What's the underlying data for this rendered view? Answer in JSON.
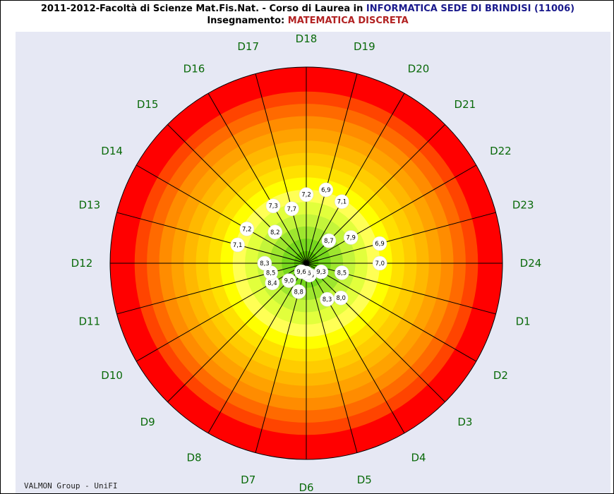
{
  "chart_data": {
    "type": "polar",
    "title_line1": [
      "2011-2012-Facoltà di Scienze Mat.Fis.Nat. - Corso di Laurea in ",
      "INFORMATICA SEDE DI BRINDISI (11006)"
    ],
    "title_line2": [
      "Insegnamento: ",
      "MATEMATICA DISCRETA"
    ],
    "footer": "VALMON Group - UniFI",
    "categories": [
      "D1",
      "D2",
      "D3",
      "D4",
      "D5",
      "D6",
      "D7",
      "D8",
      "D9",
      "D10",
      "D11",
      "D12",
      "D13",
      "D14",
      "D15",
      "D16",
      "D17",
      "D18",
      "D19",
      "D20",
      "D21",
      "D22",
      "D23",
      "D24"
    ],
    "values": [
      8.5,
      9.3,
      8.0,
      8.3,
      9.5,
      9.6,
      8.8,
      9.6,
      9.0,
      8.4,
      8.5,
      8.3,
      7.1,
      7.2,
      8.2,
      7.3,
      7.7,
      7.2,
      6.9,
      7.1,
      8.7,
      7.9,
      6.9,
      7.0
    ],
    "value_labels": [
      "8,5",
      "9,3",
      "8,0",
      "8,3",
      "9,5",
      "9,6",
      "8,8",
      "9,6",
      "9,0",
      "8,4",
      "8,5",
      "8,3",
      "7,1",
      "7,2",
      "8,2",
      "7,3",
      "7,7",
      "7,2",
      "6,9",
      "7,1",
      "8,7",
      "7,9",
      "6,9",
      "7,0"
    ],
    "rlim": [
      10,
      2
    ],
    "band_colors": [
      "#ff0000",
      "#ff0000",
      "#ff4400",
      "#ff6a00",
      "#ff8c00",
      "#ffa200",
      "#ffb800",
      "#ffcc00",
      "#ffe000",
      "#ffff00",
      "#ffff55",
      "#e2ff3c",
      "#c4f53a",
      "#9ee62e",
      "#77d81e",
      "#55c400"
    ]
  }
}
